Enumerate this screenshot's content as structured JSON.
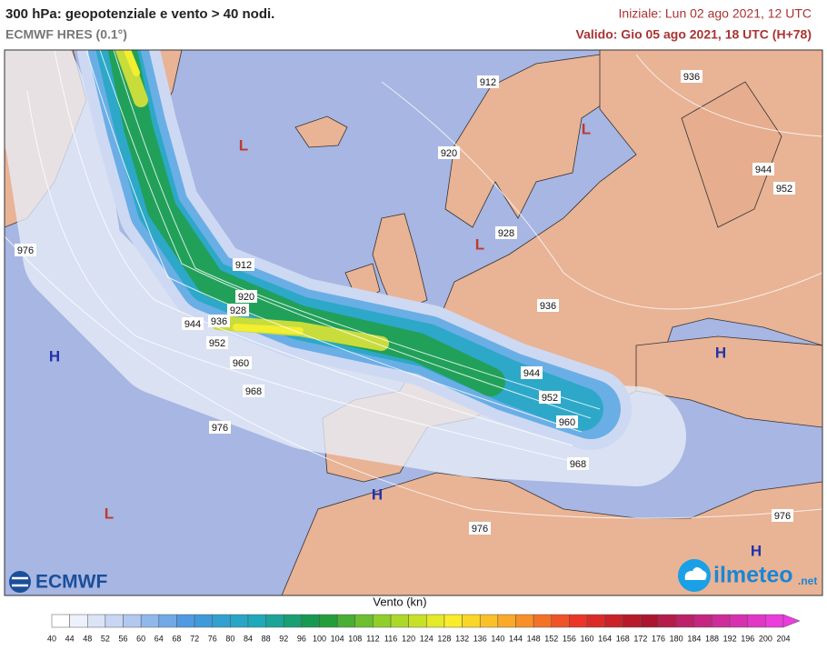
{
  "header": {
    "title": "300 hPa: geopotenziale e vento > 40 nodi.",
    "subtitle": "ECMWF HRES (0.1°)",
    "initial": "Iniziale: Lun 02 ago 2021, 12 UTC",
    "valid": "Valido: Gio 05 ago 2021, 18 UTC (H+78)"
  },
  "map": {
    "contour_labels": [
      912,
      936,
      920,
      944,
      952,
      976,
      928,
      912,
      920,
      928,
      936,
      944,
      952,
      936,
      960,
      944,
      968,
      952,
      960,
      976,
      968,
      976,
      976
    ],
    "pressure_centers": [
      "L",
      "L",
      "L",
      "H",
      "H",
      "H",
      "L",
      "H"
    ]
  },
  "logos": {
    "left": "ECMWF",
    "right": "ilmeteo",
    "right_suffix": ".net"
  },
  "colorbar": {
    "title": "Vento (kn)",
    "ticks": [
      40,
      44,
      48,
      52,
      56,
      60,
      64,
      68,
      72,
      76,
      80,
      84,
      88,
      92,
      96,
      100,
      104,
      108,
      112,
      116,
      120,
      124,
      128,
      132,
      136,
      140,
      144,
      148,
      152,
      156,
      160,
      164,
      168,
      172,
      176,
      180,
      184,
      188,
      192,
      196,
      200,
      204
    ]
  }
}
